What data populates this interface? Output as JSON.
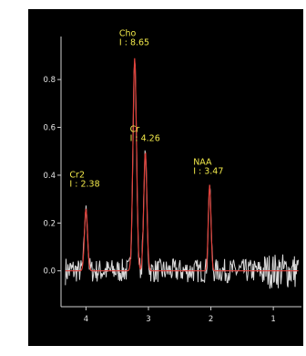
{
  "chart_data": {
    "type": "line",
    "title": "",
    "xlabel": "",
    "ylabel": "",
    "x_reversed": true,
    "xlim": [
      4.4,
      0.55
    ],
    "ylim": [
      -0.15,
      0.98
    ],
    "x_ticks": [
      "4",
      "3",
      "2",
      "1"
    ],
    "y_ticks": [
      "0.0",
      "0.2",
      "0.4",
      "0.6",
      "0.8"
    ],
    "grid": false,
    "colors": {
      "background": "#000000",
      "spectrum": "#d9d9d9",
      "fit": "#e0403a",
      "labels": "#f1e84a",
      "axes": "#cfcfcf"
    },
    "peaks": [
      {
        "name": "Cr2",
        "ppm": 4.0,
        "intensity_text": "I : 2.38",
        "height": 0.26
      },
      {
        "name": "Cho",
        "ppm": 3.22,
        "intensity_text": "I : 8.65",
        "height": 0.89
      },
      {
        "name": "Cr",
        "ppm": 3.05,
        "intensity_text": "I : 4.26",
        "height": 0.5
      },
      {
        "name": "NAA",
        "ppm": 2.02,
        "intensity_text": "I : 3.47",
        "height": 0.36
      }
    ]
  }
}
